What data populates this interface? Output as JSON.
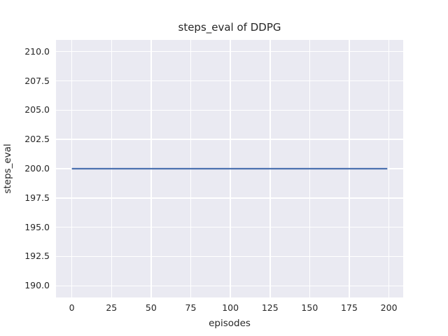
{
  "chart_data": {
    "type": "line",
    "title": "steps_eval of DDPG",
    "xlabel": "episodes",
    "ylabel": "steps_eval",
    "xlim": [
      -10,
      209
    ],
    "ylim": [
      189,
      211
    ],
    "xticks": {
      "values": [
        0,
        25,
        50,
        75,
        100,
        125,
        150,
        175,
        200
      ],
      "labels": [
        "0",
        "25",
        "50",
        "75",
        "100",
        "125",
        "150",
        "175",
        "200"
      ]
    },
    "yticks": {
      "values": [
        190.0,
        192.5,
        195.0,
        197.5,
        200.0,
        202.5,
        205.0,
        207.5,
        210.0
      ],
      "labels": [
        "190.0",
        "192.5",
        "195.0",
        "197.5",
        "200.0",
        "202.5",
        "205.0",
        "207.5",
        "210.0"
      ]
    },
    "grid": true,
    "legend": false,
    "colors": {
      "plot_background": "#eaeaf2",
      "gridline": "#ffffff",
      "figure_background": "#ffffff",
      "text": "#262626"
    },
    "series": [
      {
        "name": "steps_eval of DDPG",
        "color": "#4c72b0",
        "x": [
          0,
          199
        ],
        "y": [
          200,
          200
        ]
      }
    ]
  }
}
